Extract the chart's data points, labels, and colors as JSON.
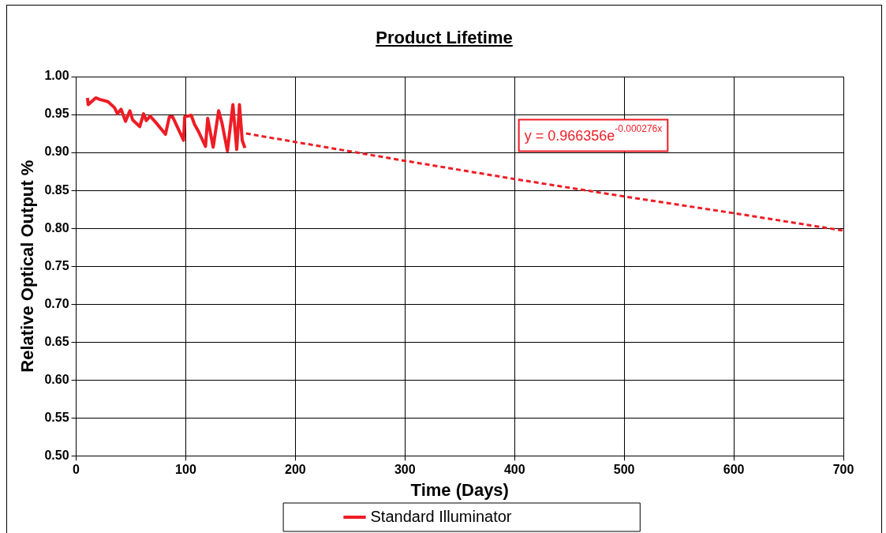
{
  "chart_data": {
    "type": "line",
    "title": "Product Lifetime",
    "xlabel": "Time (Days)",
    "ylabel": "Relative Optical Output %",
    "annotations": [
      "y = 0.966356e$^{-0.000276x}$"
    ],
    "series": [
      {
        "name": "Standard Illuminator",
        "color": "#ee1c25",
        "line_style": "solid",
        "x": [
          10.3,
          11,
          17.8,
          21.5,
          29,
          35,
          37.7,
          41,
          45,
          49,
          51.5,
          58,
          61.5,
          64,
          67.5,
          73,
          81.5,
          85,
          88,
          98,
          99,
          105,
          108,
          111.5,
          118,
          120,
          125,
          130,
          133,
          138,
          143,
          146.5,
          149,
          151.5,
          154
        ],
        "values": [
          0.972,
          0.963,
          0.972,
          0.97,
          0.967,
          0.959,
          0.951,
          0.957,
          0.941,
          0.955,
          0.943,
          0.934,
          0.951,
          0.942,
          0.948,
          0.939,
          0.924,
          0.947,
          0.947,
          0.916,
          0.947,
          0.949,
          0.937,
          0.928,
          0.908,
          0.945,
          0.907,
          0.955,
          0.939,
          0.902,
          0.963,
          0.904,
          0.963,
          0.916,
          0.906
        ]
      },
      {
        "type": "line",
        "color": "#ee1c25",
        "line_style": "dashed",
        "x": [
          155,
          300,
          400,
          500,
          600,
          700
        ],
        "values": [
          0.925,
          0.889,
          0.865,
          0.842,
          0.82,
          0.797
        ]
      }
    ],
    "xlim": [
      0,
      700
    ],
    "xticks": [
      0,
      100,
      200,
      300,
      400,
      500,
      600,
      700
    ],
    "ylim": [
      0.5,
      1.0
    ],
    "yticks": [
      {
        "value": 0.5,
        "label": "0.50"
      },
      {
        "value": 0.55,
        "label": "0.55"
      },
      {
        "value": 0.6,
        "label": "0.60"
      },
      {
        "value": 0.65,
        "label": "0.65"
      },
      {
        "value": 0.7,
        "label": "0.70"
      },
      {
        "value": 0.75,
        "label": "0.75"
      },
      {
        "value": 0.8,
        "label": "0.80"
      },
      {
        "value": 0.85,
        "label": "0.85"
      },
      {
        "value": 0.9,
        "label": "0.90"
      },
      {
        "value": 0.95,
        "label": "0.95"
      },
      {
        "value": 1.0,
        "label": "1.00"
      }
    ],
    "grid": true,
    "legend": "bottom",
    "marker": "none"
  }
}
